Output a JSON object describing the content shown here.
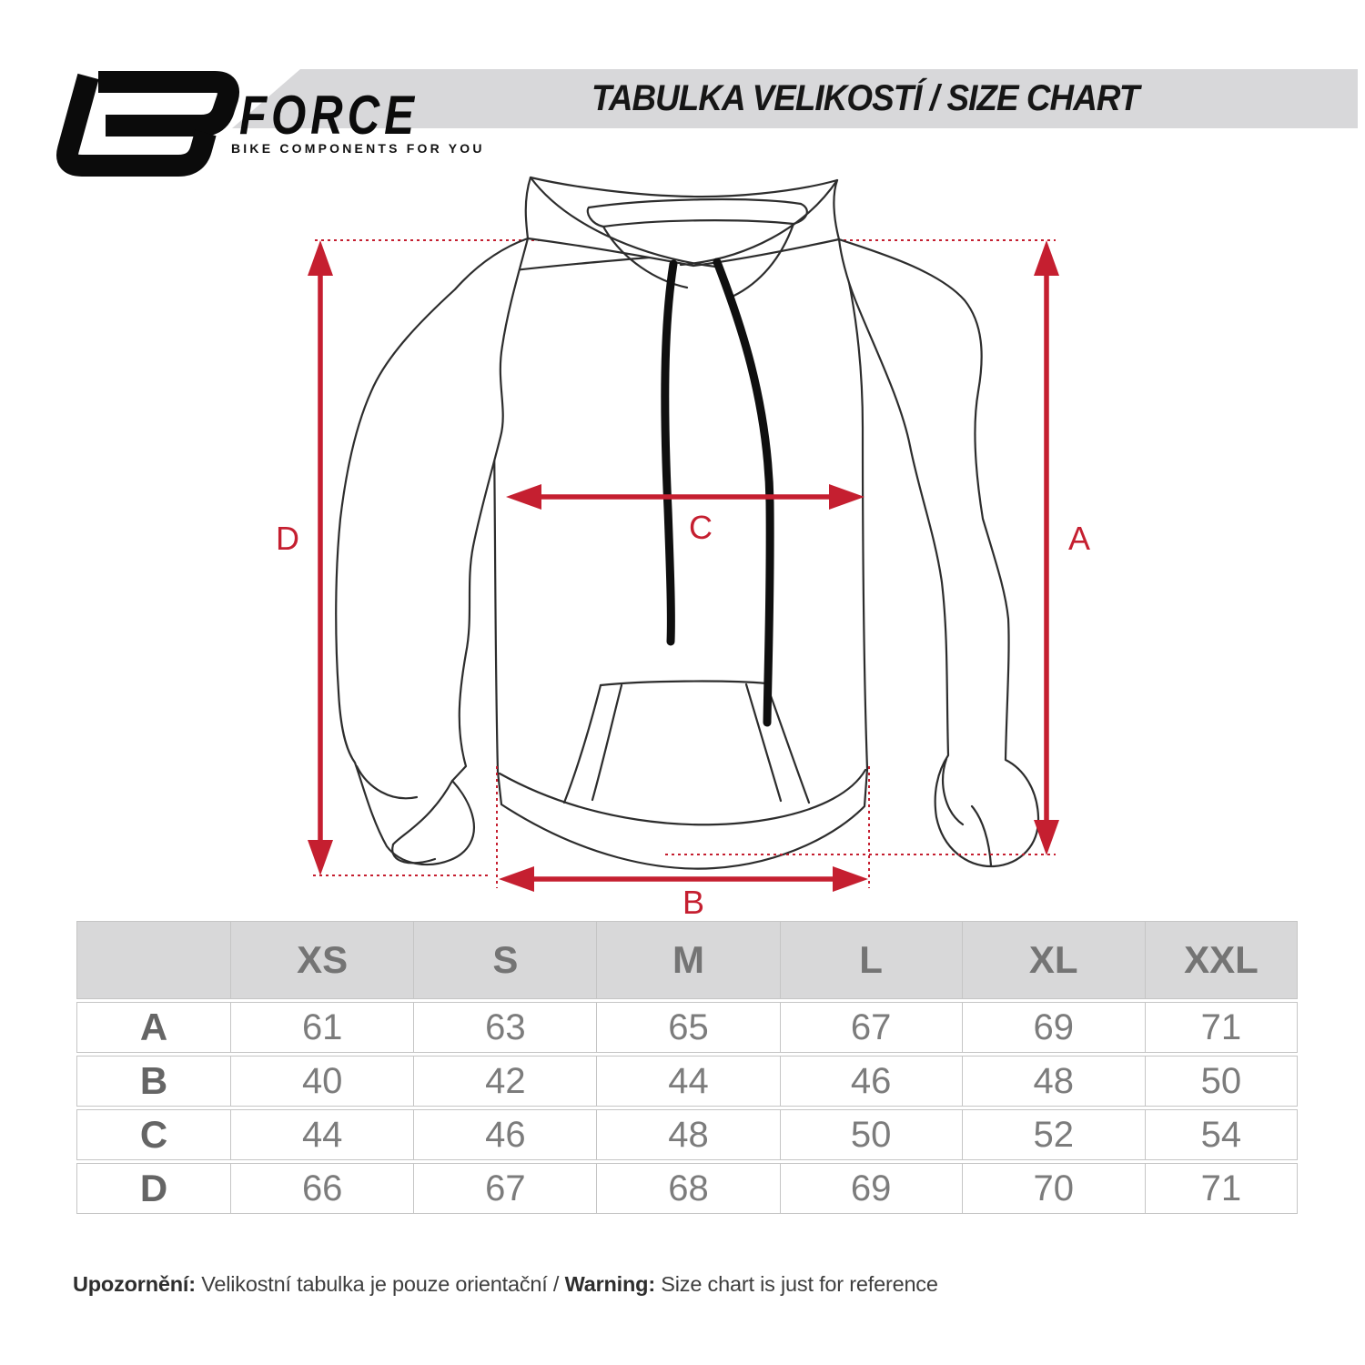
{
  "brand": {
    "name": "FORCE",
    "tagline": "BIKE COMPONENTS FOR YOU",
    "logo_icon": "force-f-monogram"
  },
  "header": {
    "title": "TABULKA VELIKOSTÍ / SIZE CHART"
  },
  "diagram": {
    "garment": "hoodie-line-drawing",
    "dimension_labels": {
      "a": "A",
      "b": "B",
      "c": "C",
      "d": "D"
    }
  },
  "size_table": {
    "columns": [
      "XS",
      "S",
      "M",
      "L",
      "XL",
      "XXL"
    ],
    "rows": [
      {
        "label": "A",
        "values": [
          "61",
          "63",
          "65",
          "67",
          "69",
          "71"
        ]
      },
      {
        "label": "B",
        "values": [
          "40",
          "42",
          "44",
          "46",
          "48",
          "50"
        ]
      },
      {
        "label": "C",
        "values": [
          "44",
          "46",
          "48",
          "50",
          "52",
          "54"
        ]
      },
      {
        "label": "D",
        "values": [
          "66",
          "67",
          "68",
          "69",
          "70",
          "71"
        ]
      }
    ]
  },
  "footer": {
    "warning_label_cs": "Upozornění:",
    "warning_text_cs": " Velikostní tabulka je pouze orientační / ",
    "warning_label_en": "Warning:",
    "warning_text_en": " Size chart is just for reference"
  },
  "colors": {
    "accent_red": "#c51f30",
    "band_gray": "#d8d8da",
    "table_header_bg": "#d8d8d9",
    "outline_dark": "#2d2d2d"
  }
}
